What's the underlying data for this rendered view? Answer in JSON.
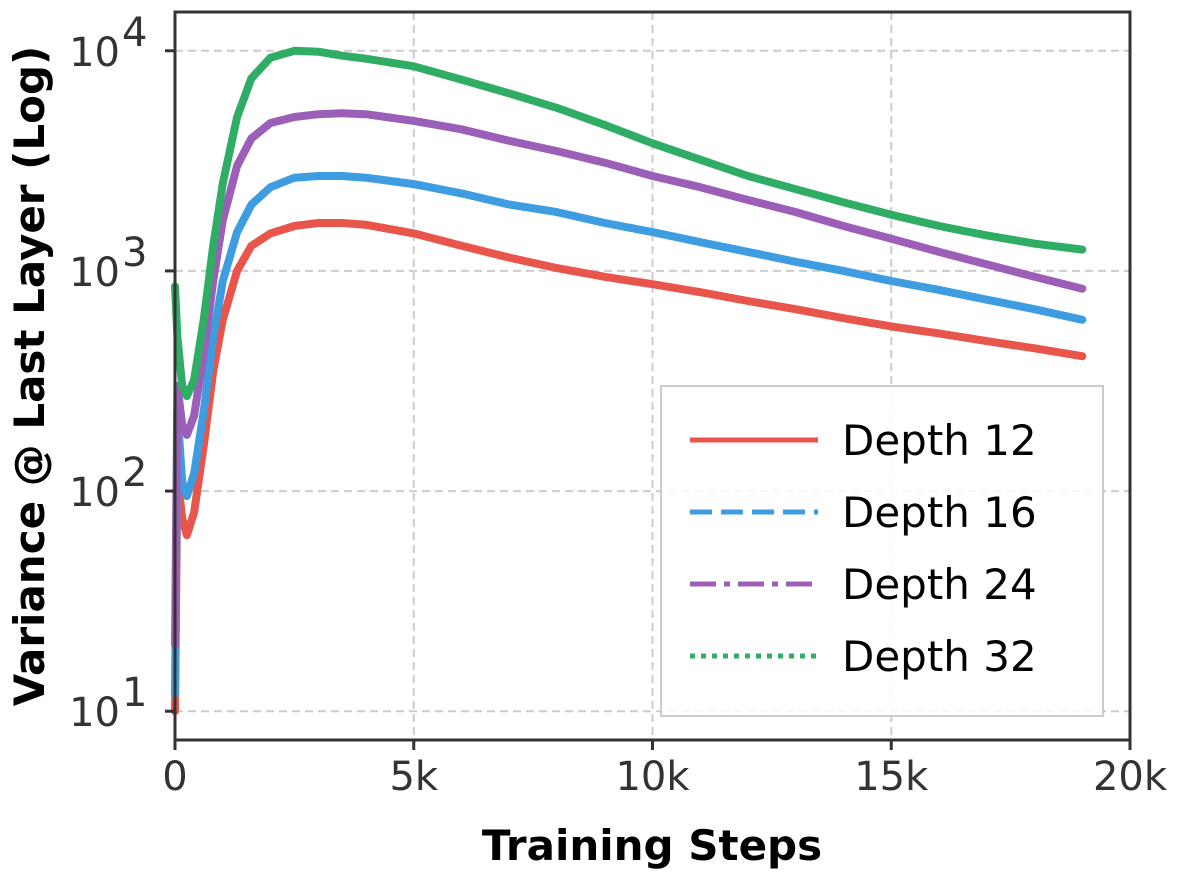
{
  "chart_data": {
    "type": "line",
    "title": "",
    "xlabel": "Training Steps",
    "ylabel": "Variance @ Last Layer (Log)",
    "xlim": [
      0,
      20000
    ],
    "ylim": [
      7.4,
      15000
    ],
    "yscale": "log",
    "grid": true,
    "legend_position": "lower-right",
    "x_ticks": [
      {
        "value": 0,
        "label": "0"
      },
      {
        "value": 5000,
        "label": "5k"
      },
      {
        "value": 10000,
        "label": "10k"
      },
      {
        "value": 15000,
        "label": "15k"
      },
      {
        "value": 20000,
        "label": "20k"
      }
    ],
    "y_ticks": [
      {
        "value": 10,
        "base": "10",
        "exp": "1"
      },
      {
        "value": 100,
        "base": "10",
        "exp": "2"
      },
      {
        "value": 1000,
        "base": "10",
        "exp": "3"
      },
      {
        "value": 10000,
        "base": "10",
        "exp": "4"
      }
    ],
    "x": [
      0,
      50,
      150,
      250,
      400,
      600,
      800,
      1000,
      1300,
      1600,
      2000,
      2500,
      3000,
      3500,
      4000,
      5000,
      6000,
      7000,
      8000,
      9000,
      10000,
      11000,
      12000,
      13000,
      14000,
      15000,
      16000,
      17000,
      18000,
      19000
    ],
    "series": [
      {
        "name": "Depth 12",
        "color": "#e8554a",
        "dash": "solid",
        "values": [
          10,
          120,
          75,
          63,
          80,
          160,
          350,
          600,
          1000,
          1300,
          1480,
          1600,
          1650,
          1650,
          1620,
          1480,
          1300,
          1150,
          1030,
          940,
          870,
          800,
          730,
          670,
          610,
          560,
          520,
          480,
          445,
          410
        ]
      },
      {
        "name": "Depth 16",
        "color": "#3d9de0",
        "dash": "dashed",
        "values": [
          12,
          230,
          110,
          95,
          120,
          230,
          500,
          900,
          1500,
          2000,
          2400,
          2650,
          2700,
          2700,
          2650,
          2480,
          2250,
          2000,
          1850,
          1650,
          1500,
          1350,
          1220,
          1100,
          1000,
          900,
          820,
          740,
          670,
          600
        ]
      },
      {
        "name": "Depth 24",
        "color": "#9b5fb8",
        "dash": "dashdot",
        "values": [
          20,
          300,
          200,
          180,
          220,
          420,
          900,
          1700,
          3000,
          4000,
          4700,
          5000,
          5150,
          5200,
          5150,
          4800,
          4400,
          3900,
          3500,
          3100,
          2700,
          2400,
          2100,
          1850,
          1600,
          1400,
          1220,
          1070,
          940,
          830
        ]
      },
      {
        "name": "Depth 32",
        "color": "#30ad65",
        "dash": "dotted",
        "values": [
          850,
          500,
          300,
          270,
          320,
          600,
          1300,
          2500,
          5000,
          7500,
          9300,
          10000,
          9900,
          9500,
          9200,
          8500,
          7400,
          6400,
          5500,
          4600,
          3800,
          3200,
          2700,
          2350,
          2050,
          1800,
          1600,
          1450,
          1330,
          1250
        ]
      }
    ]
  }
}
